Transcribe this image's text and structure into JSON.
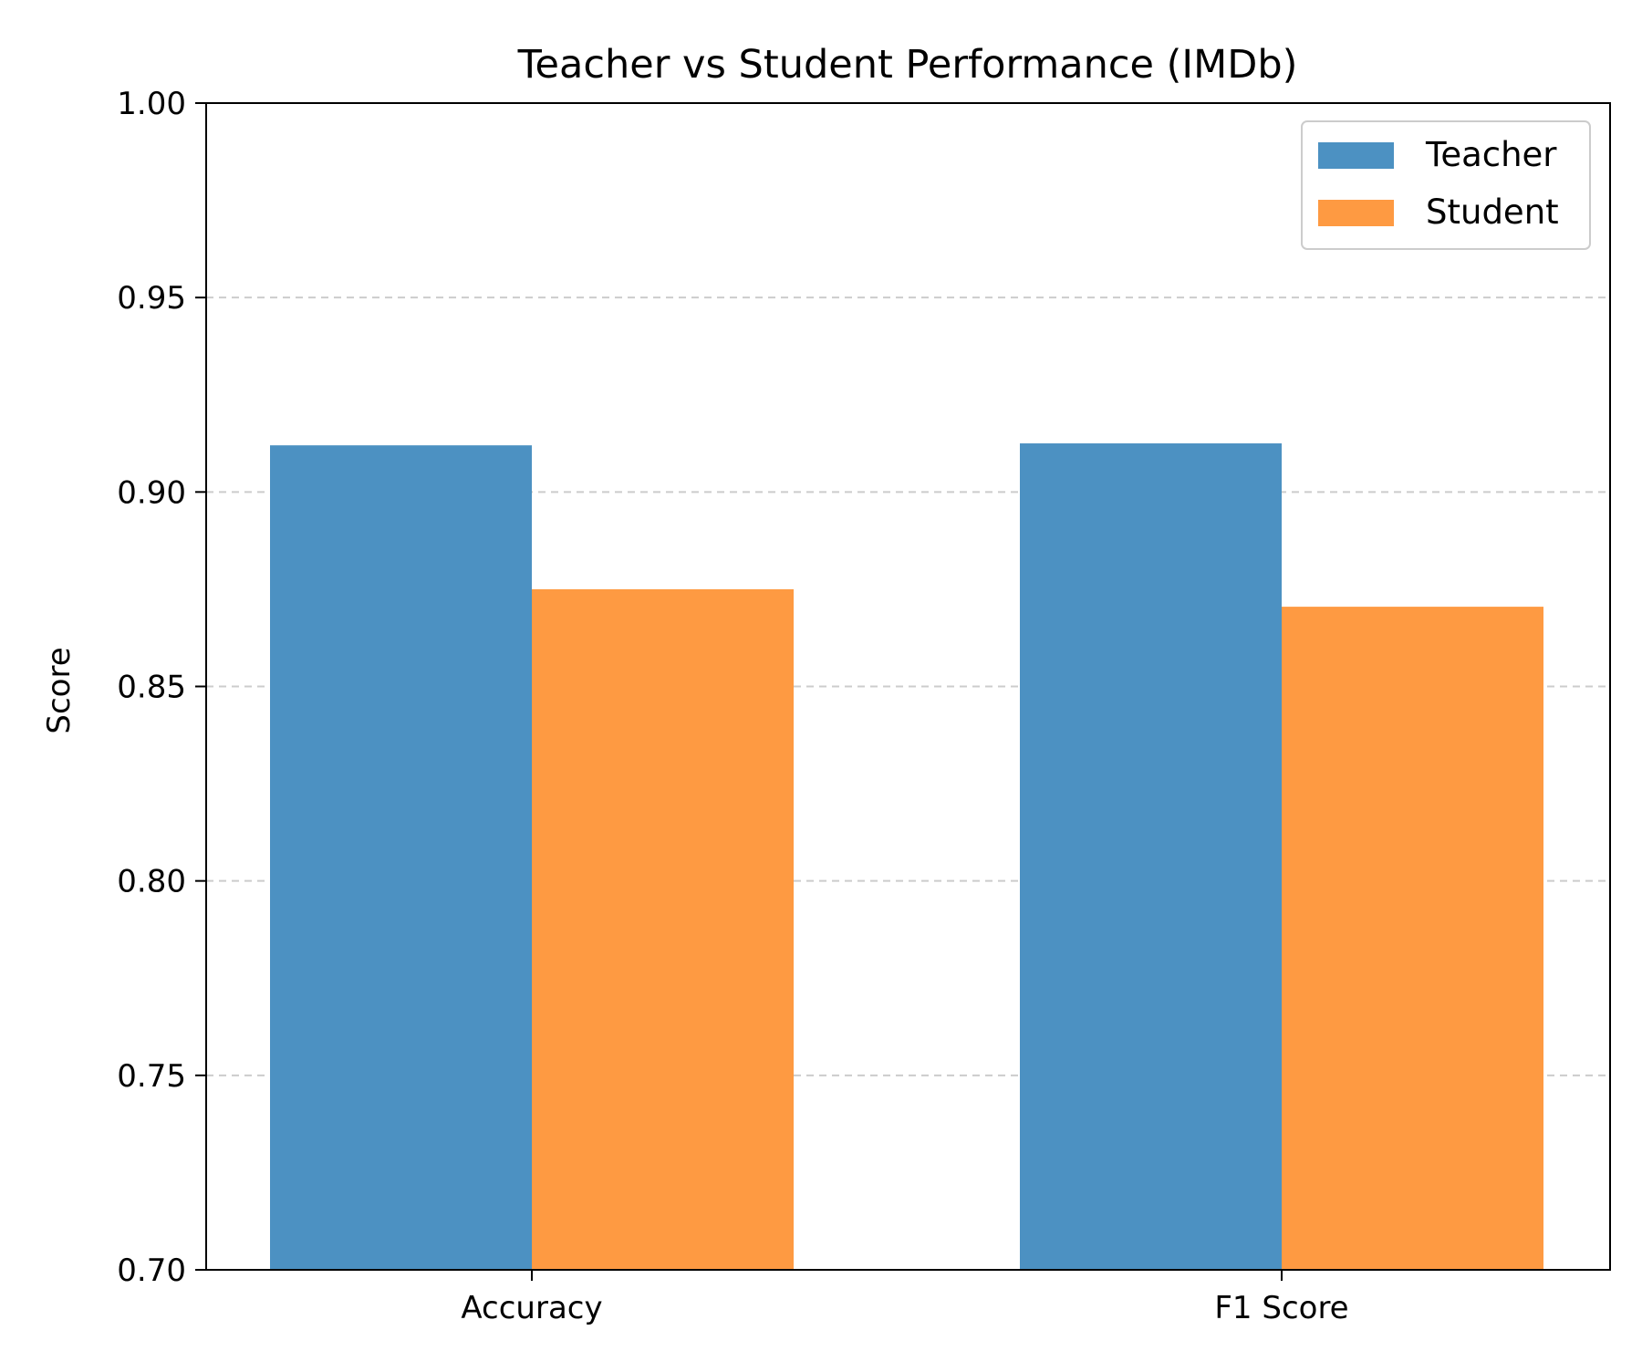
{
  "chart_data": {
    "type": "bar",
    "title": "Teacher vs Student Performance (IMDb)",
    "xlabel": "",
    "ylabel": "Score",
    "categories": [
      "Accuracy",
      "F1 Score"
    ],
    "series": [
      {
        "name": "Teacher",
        "values": [
          0.912,
          0.9125
        ]
      },
      {
        "name": "Student",
        "values": [
          0.875,
          0.8705
        ]
      }
    ],
    "ylim": [
      0.7,
      1.0
    ],
    "yticks": [
      "0.70",
      "0.75",
      "0.80",
      "0.85",
      "0.90",
      "0.95",
      "1.00"
    ],
    "grid": "y, dashed",
    "legend_position": "top-right"
  },
  "colors": {
    "Teacher": "#4c91c2",
    "Student": "#fe9a42",
    "grid": "#cccccc",
    "axis": "#000000"
  }
}
